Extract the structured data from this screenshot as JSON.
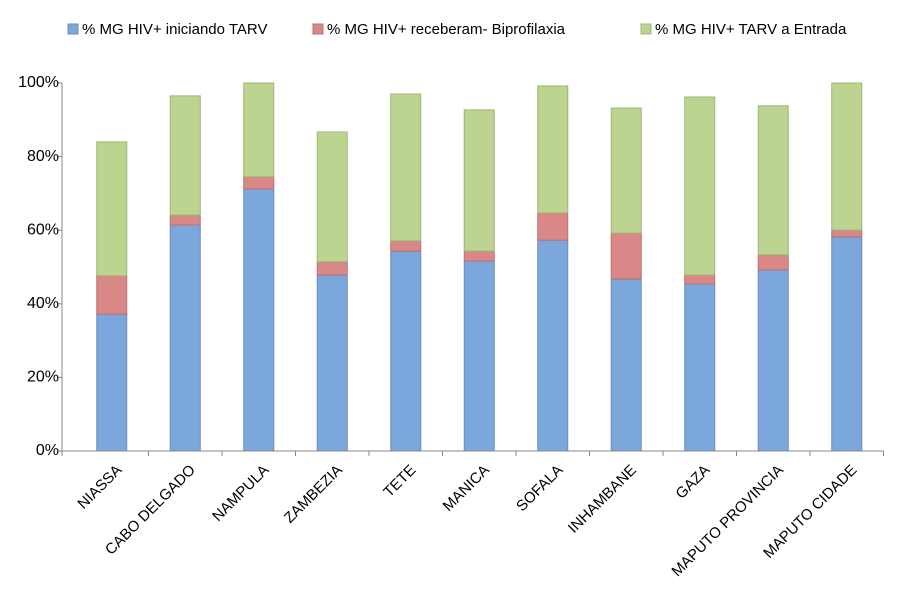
{
  "chart_data": {
    "type": "stacked_bar",
    "categories": [
      "NIASSA",
      "CABO DELGADO",
      "NAMPULA",
      "ZAMBEZIA",
      "TETE",
      "MANICA",
      "SOFALA",
      "INHAMBANE",
      "GAZA",
      "MAPUTO PROVINCIA",
      "MAPUTO CIDADE"
    ],
    "series": [
      {
        "name": "%  MG HIV+ iniciando TARV",
        "color": "#7ba7dc",
        "values": [
          37.2,
          61.4,
          71.2,
          47.8,
          54.3,
          51.6,
          57.3,
          46.7,
          45.4,
          49.2,
          58.2
        ]
      },
      {
        "name": "%  MG HIV+ receberam- Biprofilaxia",
        "color": "#d98787",
        "values": [
          10.4,
          2.7,
          3.3,
          3.6,
          2.8,
          2.7,
          7.4,
          12.5,
          2.4,
          4.1,
          1.8
        ]
      },
      {
        "name": "%  MG HIV+ TARV a Entrada",
        "color": "#bcd48f",
        "values": [
          36.4,
          32.4,
          25.5,
          35.3,
          39.9,
          38.4,
          34.5,
          34.0,
          48.4,
          40.5,
          40.0
        ]
      }
    ],
    "ylim": [
      0,
      100
    ],
    "yticks": [
      {
        "value": 0,
        "label": "0%"
      },
      {
        "value": 20,
        "label": "20%"
      },
      {
        "value": 40,
        "label": "40%"
      },
      {
        "value": 60,
        "label": "60%"
      },
      {
        "value": 80,
        "label": "80%"
      },
      {
        "value": 100,
        "label": "100%"
      }
    ],
    "grid": false,
    "legend": "top"
  }
}
